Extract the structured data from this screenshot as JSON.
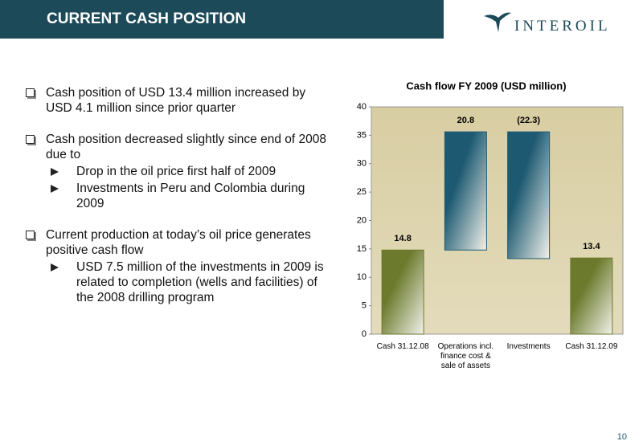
{
  "header": {
    "title": "CURRENT CASH POSITION",
    "logo": "INTEROIL"
  },
  "bullets": [
    {
      "text": "Cash position of USD 13.4 million increased by USD 4.1 million since prior quarter",
      "sub": []
    },
    {
      "text": "Cash position decreased slightly since end of 2008 due to",
      "sub": [
        "Drop in the oil price first half of 2009",
        "Investments in Peru and Colombia during 2009"
      ]
    },
    {
      "text": "Current production at today’s oil price generates positive cash flow",
      "sub": [
        "USD 7.5 million of the investments in 2009 is related to completion (wells and facilities) of the 2008 drilling program"
      ]
    }
  ],
  "page_number": "10",
  "chart_data": {
    "type": "waterfall",
    "title": "Cash flow FY 2009 (USD million)",
    "categories": [
      "Cash 31.12.08",
      "Operations incl. finance cost & sale of assets",
      "Investments",
      "Cash 31.12.09"
    ],
    "values": [
      14.8,
      20.8,
      -22.3,
      13.4
    ],
    "value_labels": [
      "14.8",
      "20.8",
      "(22.3)",
      "13.4"
    ],
    "totals": [
      true,
      false,
      false,
      true
    ],
    "total_color": "#6b7a2c",
    "delta_color": "#1d5a72",
    "ylim": [
      0,
      40
    ],
    "yticks": [
      0,
      5,
      10,
      15,
      20,
      25,
      30,
      35,
      40
    ]
  }
}
